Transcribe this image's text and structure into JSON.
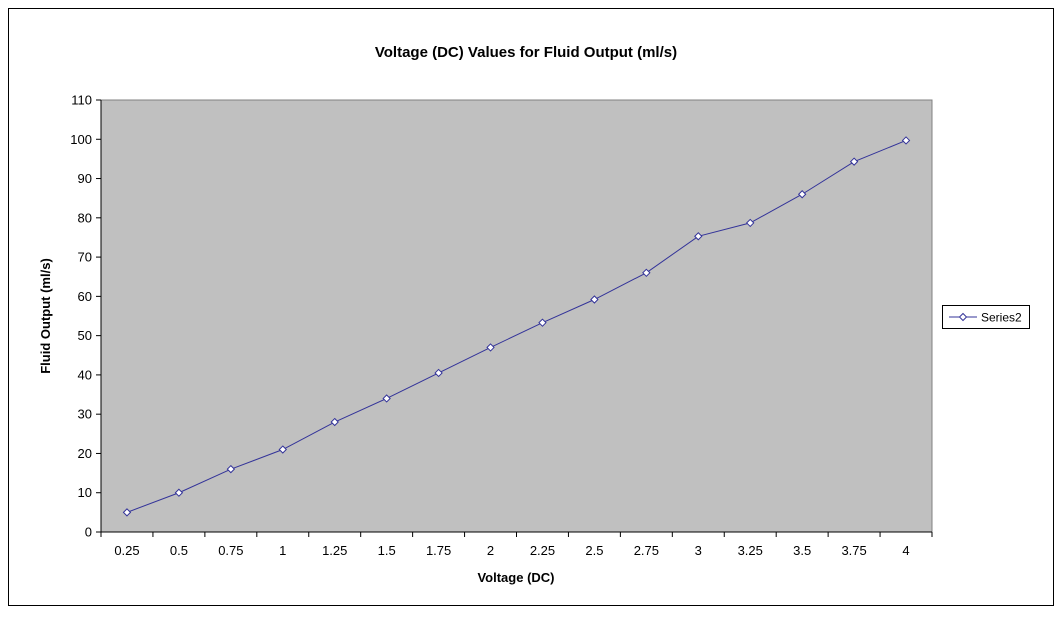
{
  "chart_data": {
    "type": "line",
    "title": "Voltage (DC) Values for Fluid Output (ml/s)",
    "xlabel": "Voltage (DC)",
    "ylabel": "Fluid Output (ml/s)",
    "categories": [
      "0.25",
      "0.5",
      "0.75",
      "1",
      "1.25",
      "1.5",
      "1.75",
      "2",
      "2.25",
      "2.5",
      "2.75",
      "3",
      "3.25",
      "3.5",
      "3.75",
      "4"
    ],
    "series": [
      {
        "name": "Series2",
        "values": [
          5,
          10,
          16,
          21,
          28,
          34,
          40.5,
          47,
          53.3,
          59.2,
          66,
          75.3,
          78.7,
          86,
          94.3,
          99.7
        ]
      }
    ],
    "ylim": [
      0,
      110
    ],
    "yticks": [
      "0",
      "10",
      "20",
      "30",
      "40",
      "50",
      "60",
      "70",
      "80",
      "90",
      "100",
      "110"
    ],
    "grid": false,
    "legend_position": "right",
    "plot_background": "#c0c0c0",
    "line_color": "#333399",
    "marker": "diamond"
  }
}
